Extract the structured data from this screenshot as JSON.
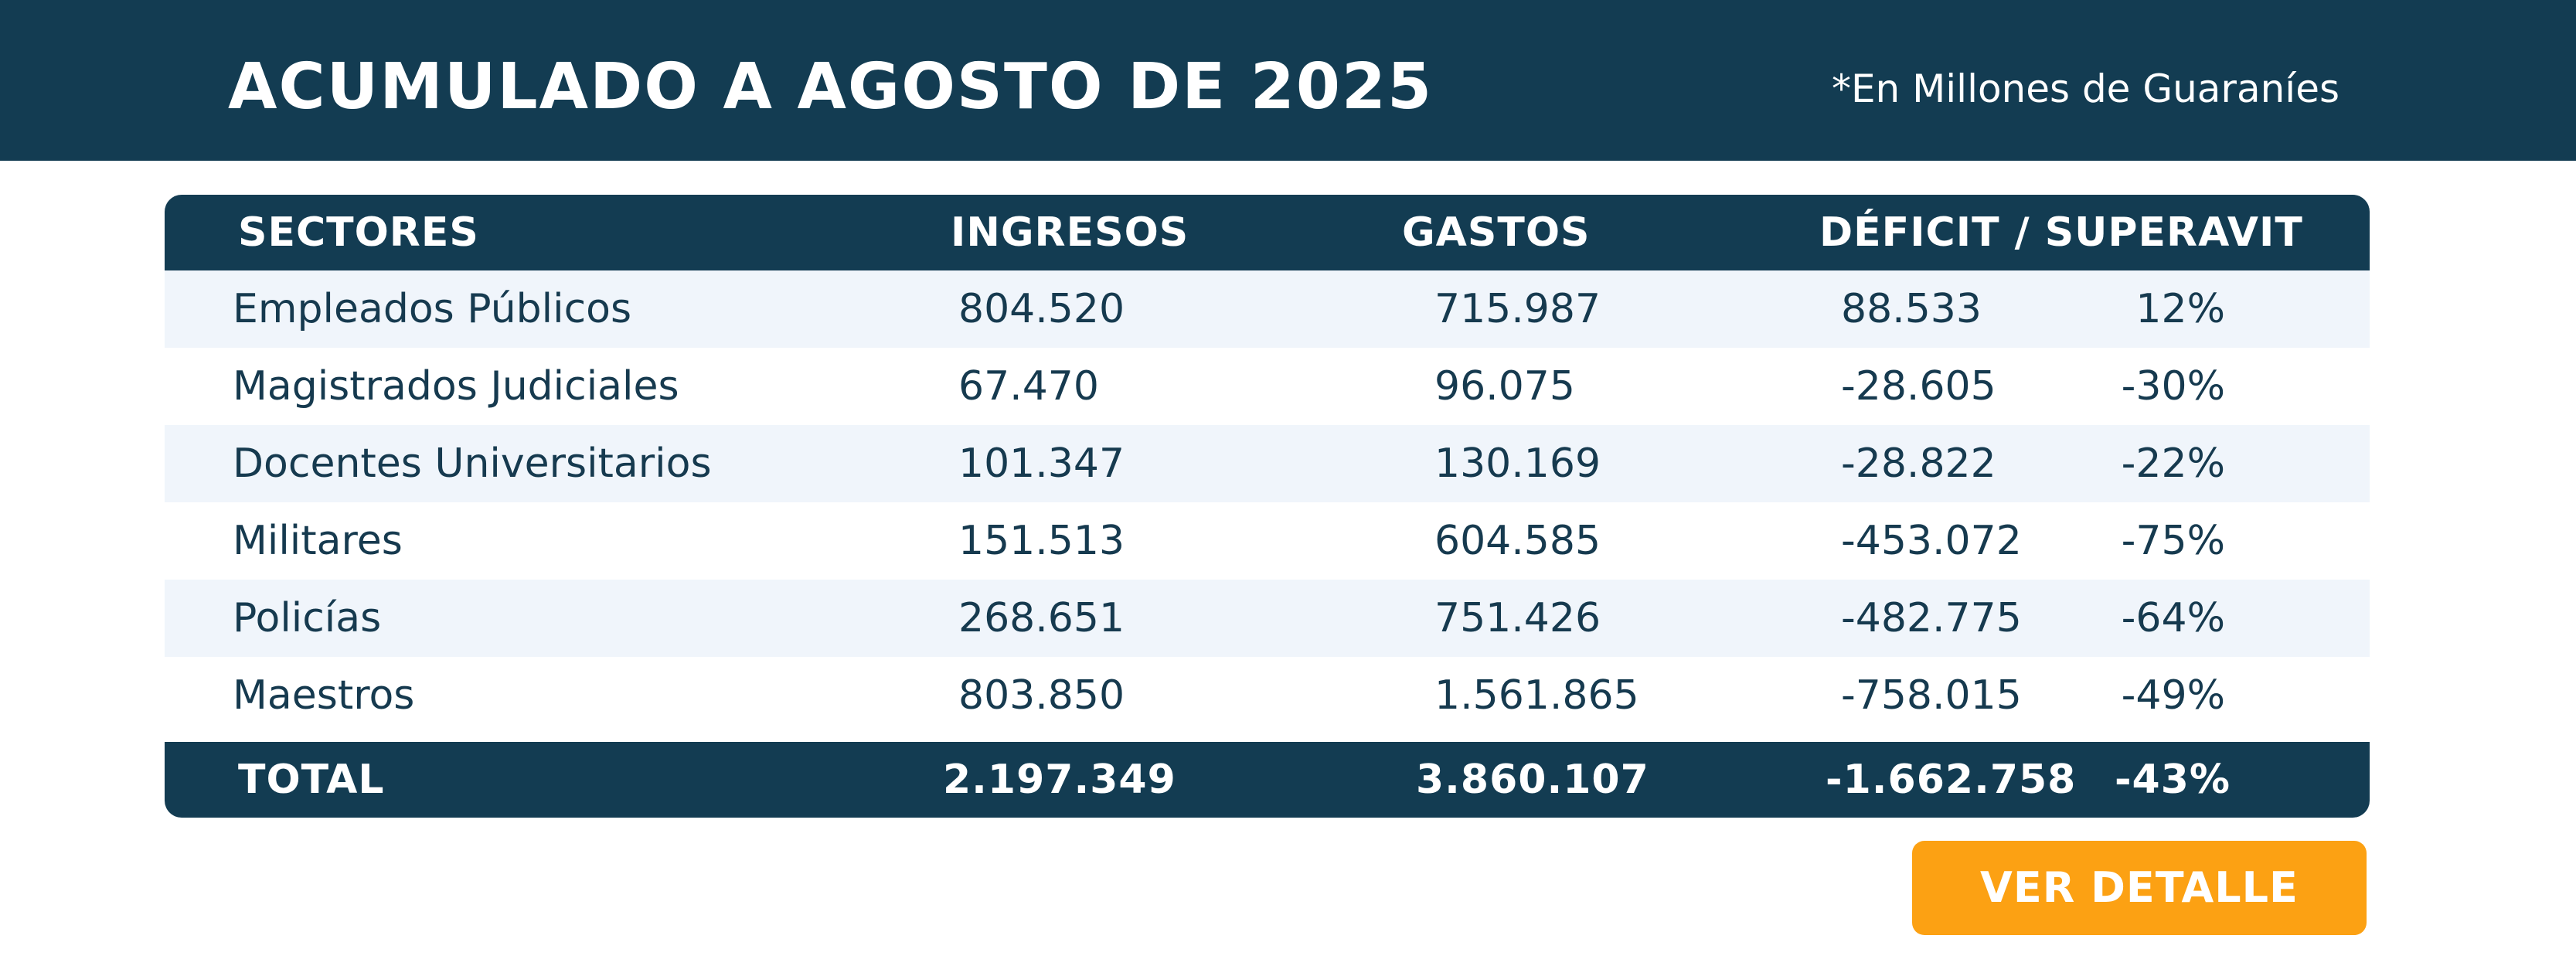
{
  "header": {
    "title": "ACUMULADO A AGOSTO DE 2025",
    "note": "*En Millones de Guaraníes",
    "background": "#133c52"
  },
  "table": {
    "columns": {
      "sector": "SECTORES",
      "ingresos": "INGRESOS",
      "gastos": "GASTOS",
      "deficit": "DÉFICIT / SUPERAVIT"
    },
    "rows": [
      {
        "sector": "Empleados Públicos",
        "ingresos": "804.520",
        "gastos": "715.987",
        "deficit": "88.533",
        "pct": "12%"
      },
      {
        "sector": "Magistrados Judiciales",
        "ingresos": "67.470",
        "gastos": "96.075",
        "deficit": "-28.605",
        "pct": "-30%"
      },
      {
        "sector": "Docentes Universitarios",
        "ingresos": "101.347",
        "gastos": "130.169",
        "deficit": "-28.822",
        "pct": "-22%"
      },
      {
        "sector": "Militares",
        "ingresos": "151.513",
        "gastos": "604.585",
        "deficit": "-453.072",
        "pct": "-75%"
      },
      {
        "sector": "Policías",
        "ingresos": "268.651",
        "gastos": "751.426",
        "deficit": "-482.775",
        "pct": "-64%"
      },
      {
        "sector": "Maestros",
        "ingresos": "803.850",
        "gastos": "1.561.865",
        "deficit": "-758.015",
        "pct": "-49%"
      }
    ],
    "total": {
      "label": "TOTAL",
      "ingresos": "2.197.349",
      "gastos": "3.860.107",
      "deficit": "-1.662.758",
      "pct": "-43%"
    },
    "row_alt_color": "#f0f5fb"
  },
  "actions": {
    "detail_label": "VER DETALLE",
    "accent": "#fca113"
  }
}
